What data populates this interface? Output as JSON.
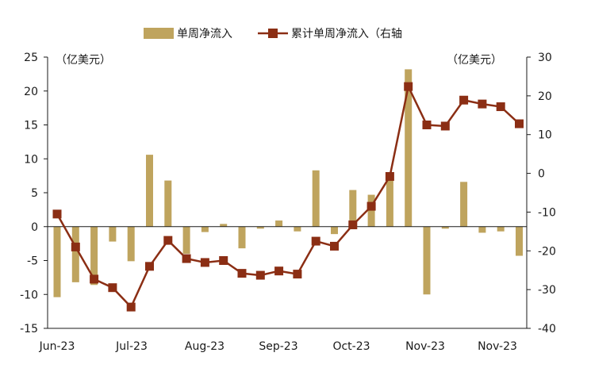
{
  "chart_data": {
    "type": "bar+line",
    "legend": {
      "position": "top-center",
      "bar_label": "单周净流入",
      "line_label": "累计单周净流入（右轴"
    },
    "left_axis": {
      "unit": "（亿美元）",
      "ylim": [
        -15,
        25
      ],
      "ticks": [
        -15,
        -10,
        -5,
        0,
        5,
        10,
        15,
        20,
        25
      ]
    },
    "right_axis": {
      "unit": "（亿美元）",
      "ylim": [
        -40,
        30
      ],
      "ticks": [
        -40,
        -30,
        -20,
        -10,
        0,
        10,
        20,
        30
      ]
    },
    "x_tick_labels": [
      "Jun-23",
      "Jul-23",
      "Aug-23",
      "Sep-23",
      "Oct-23",
      "Nov-23",
      "Nov-23"
    ],
    "weeks": 26,
    "series": [
      {
        "name": "单周净流入",
        "type": "bar",
        "axis": "left",
        "values": [
          -10.4,
          -8.2,
          -8.6,
          -2.2,
          -5.1,
          10.6,
          6.8,
          -4.0,
          -0.8,
          0.4,
          -3.2,
          -0.3,
          0.9,
          -0.7,
          8.3,
          -1.1,
          5.4,
          4.7,
          7.5,
          23.2,
          -10.0,
          -0.3,
          6.6,
          -0.9,
          -0.7,
          -4.3
        ]
      },
      {
        "name": "累计单周净流入（右轴",
        "type": "line",
        "axis": "right",
        "values": [
          -10.5,
          -19.0,
          -27.3,
          -29.5,
          -34.5,
          -24.0,
          -17.3,
          -22.0,
          -23.0,
          -22.5,
          -25.8,
          -26.3,
          -25.2,
          -26.0,
          -17.5,
          -18.8,
          -13.3,
          -8.5,
          -0.8,
          22.4,
          12.5,
          12.2,
          18.9,
          17.9,
          17.2,
          12.8
        ]
      }
    ],
    "colors": {
      "bar": "#BFA45E",
      "line": "#8B2E14",
      "marker": "#8B2E14",
      "axis": "#1a1a1a"
    }
  }
}
